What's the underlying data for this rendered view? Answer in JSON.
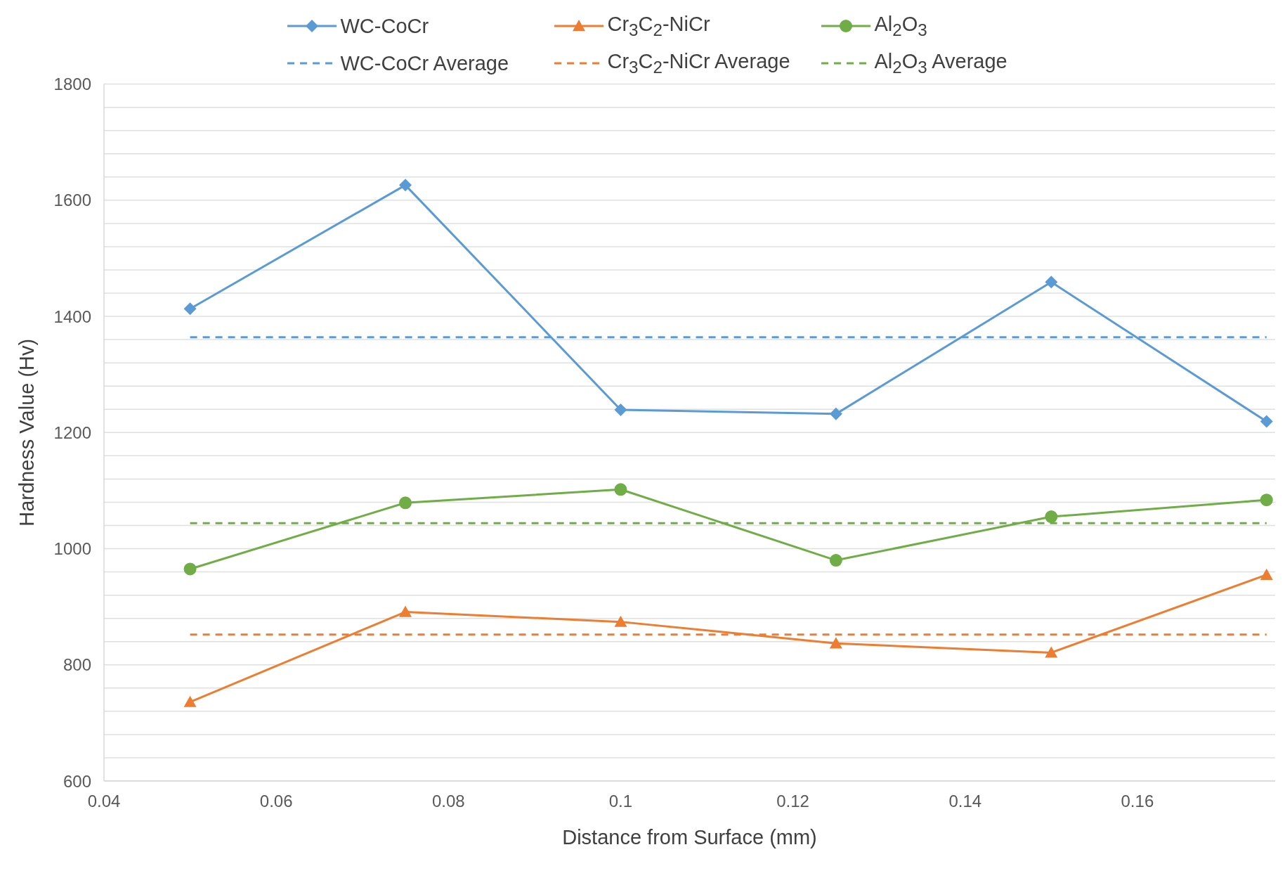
{
  "chart_data": {
    "type": "line",
    "xlabel": "Distance from Surface (mm)",
    "ylabel": "Hardness Value (Hv)",
    "x": [
      0.05,
      0.075,
      0.1,
      0.125,
      0.15,
      0.175
    ],
    "series": [
      {
        "name": "WC-CoCr",
        "color": "#5b9bd5",
        "marker": "diamond",
        "line_style": "solid",
        "values": [
          1413,
          1626,
          1239,
          1232,
          1459,
          1219
        ]
      },
      {
        "name": "Cr$_{3}$C$_{2}$-NiCr",
        "color": "#ed7d31",
        "marker": "triangle",
        "line_style": "solid",
        "values": [
          736,
          891,
          874,
          837,
          821,
          955
        ]
      },
      {
        "name": "Al$_{2}$O$_{3}$",
        "color": "#70ad47",
        "marker": "circle",
        "line_style": "solid",
        "values": [
          965,
          1079,
          1102,
          980,
          1055,
          1084
        ]
      },
      {
        "name": "WC-CoCr Average",
        "color": "#5b9bd5",
        "marker": "none",
        "line_style": "dashed",
        "values": [
          1364,
          1364,
          1364,
          1364,
          1364,
          1364
        ]
      },
      {
        "name": "Cr$_{3}$C$_{2}$-NiCr Average",
        "color": "#ed7d31",
        "marker": "none",
        "line_style": "dashed",
        "values": [
          852,
          852,
          852,
          852,
          852,
          852
        ]
      },
      {
        "name": "Al$_{2}$O$_{3}$ Average",
        "color": "#70ad47",
        "marker": "none",
        "line_style": "dashed",
        "values": [
          1044,
          1044,
          1044,
          1044,
          1044,
          1044
        ]
      }
    ],
    "xlim": [
      0.04,
      0.176
    ],
    "xticks": [
      0.04,
      0.06,
      0.08,
      0.1,
      0.12,
      0.14,
      0.16
    ],
    "ylim": [
      600,
      1800
    ],
    "yticks": [
      600,
      {
        "value": 640,
        "label": null
      },
      {
        "value": 680,
        "label": null
      },
      {
        "value": 720,
        "label": null
      },
      {
        "value": 760,
        "label": null
      },
      800,
      {
        "value": 840,
        "label": null
      },
      {
        "value": 880,
        "label": null
      },
      {
        "value": 920,
        "label": null
      },
      {
        "value": 960,
        "label": null
      },
      1000,
      {
        "value": 1040,
        "label": null
      },
      {
        "value": 1080,
        "label": null
      },
      {
        "value": 1120,
        "label": null
      },
      {
        "value": 1160,
        "label": null
      },
      1200,
      {
        "value": 1240,
        "label": null
      },
      {
        "value": 1280,
        "label": null
      },
      {
        "value": 1320,
        "label": null
      },
      {
        "value": 1360,
        "label": null
      },
      1400,
      {
        "value": 1440,
        "label": null
      },
      {
        "value": 1480,
        "label": null
      },
      {
        "value": 1520,
        "label": null
      },
      {
        "value": 1560,
        "label": null
      },
      1600,
      {
        "value": 1640,
        "label": null
      },
      {
        "value": 1680,
        "label": null
      },
      {
        "value": 1720,
        "label": null
      },
      {
        "value": 1760,
        "label": null
      },
      1800
    ],
    "grid": "y",
    "legend": "top"
  }
}
